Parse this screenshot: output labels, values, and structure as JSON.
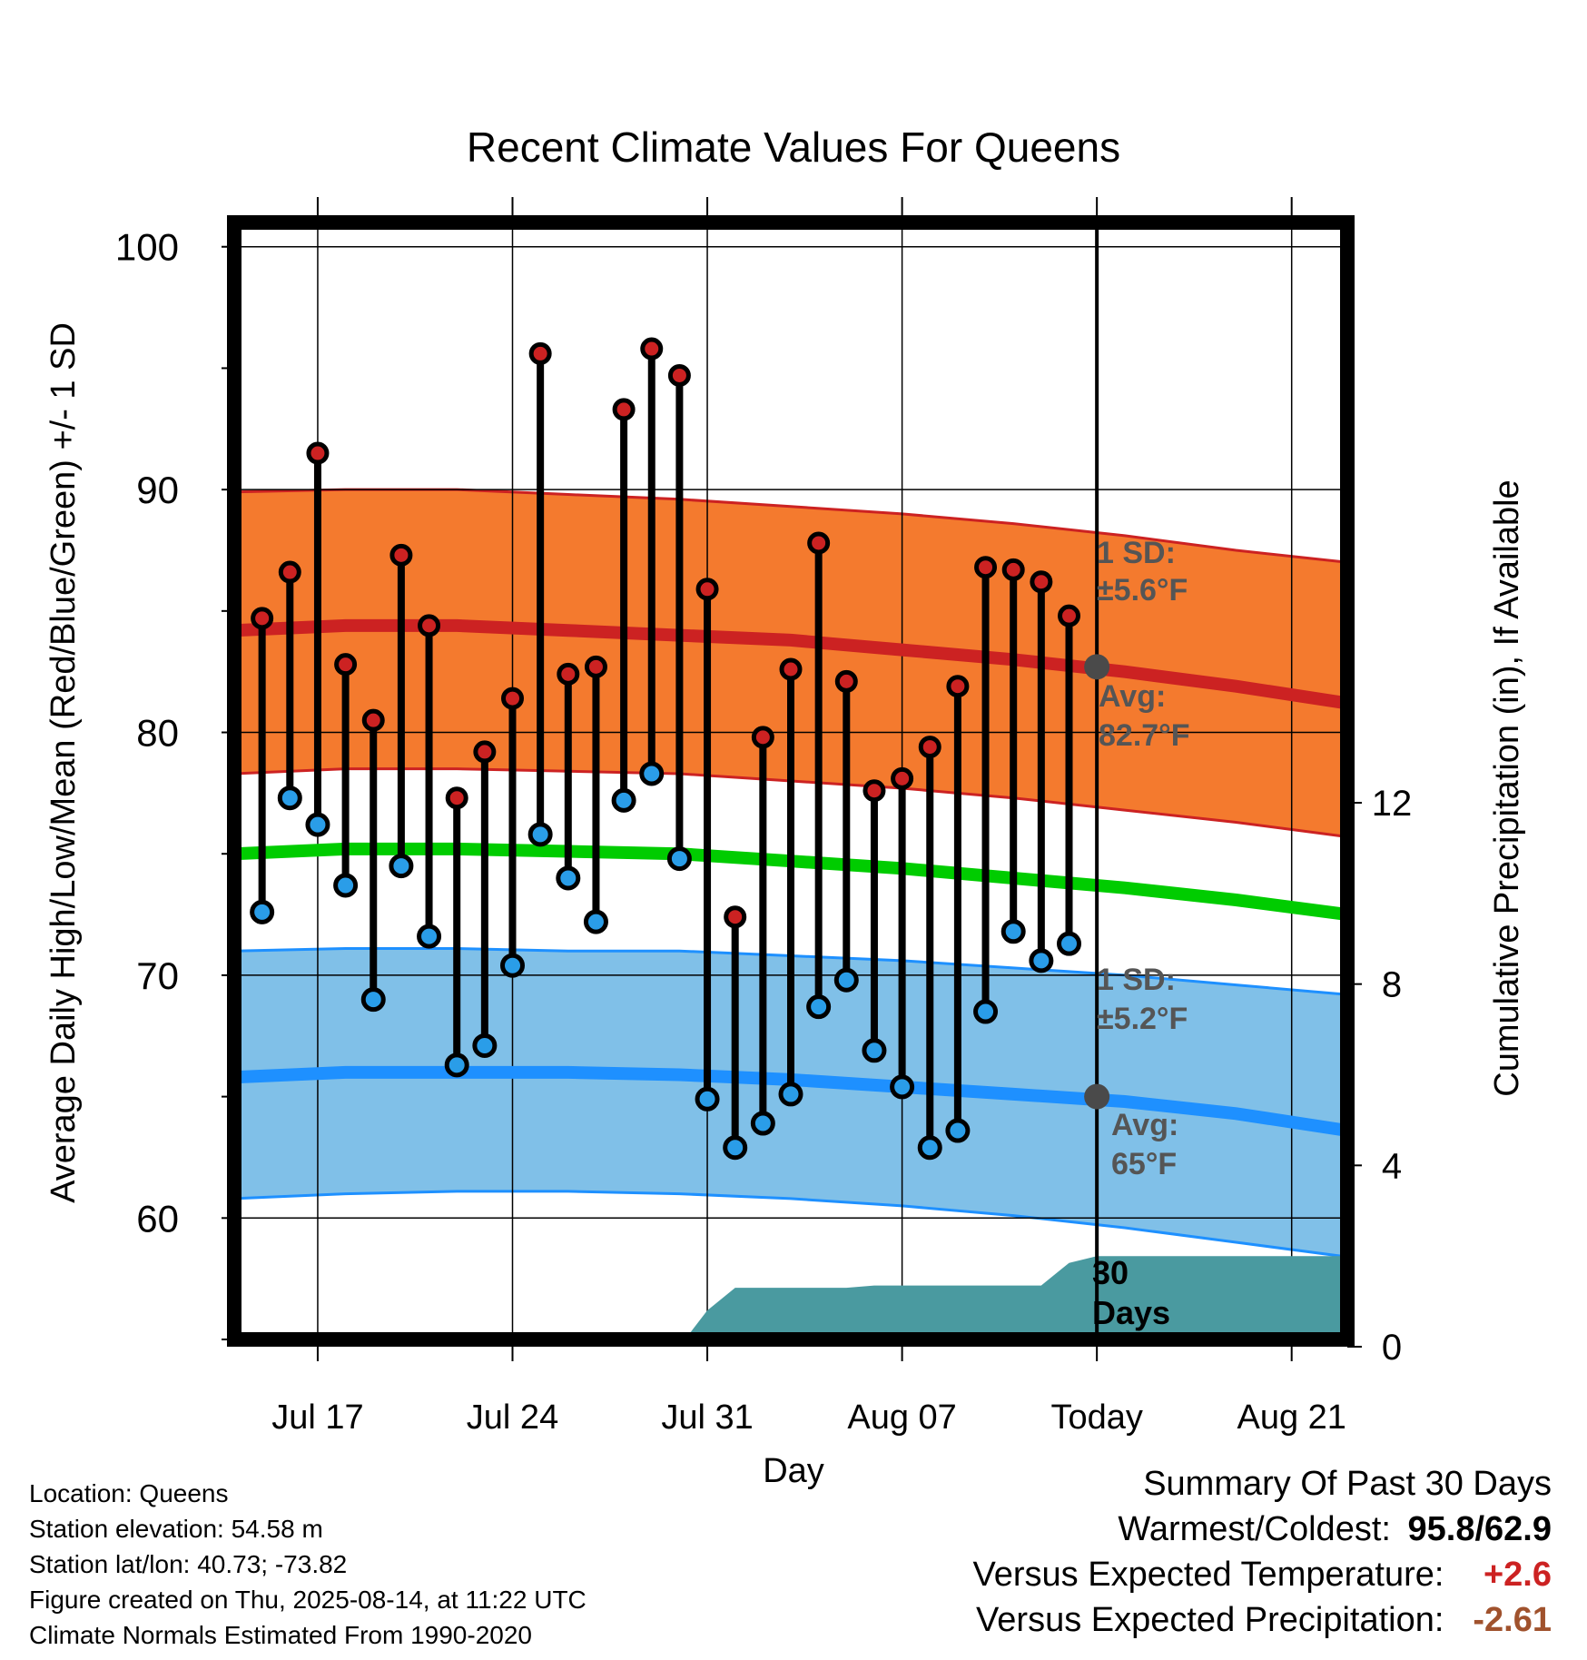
{
  "chart_data": {
    "type": "line",
    "title": "Recent Climate Values For Queens",
    "xlabel": "Day",
    "ylabel": "Average Daily High/Low/Mean (Red/Blue/Green) +/- 1 SD",
    "y2label": "Cumulative Precipitation (in), If Available",
    "ylim": [
      55,
      101
    ],
    "y2lim": [
      0,
      24
    ],
    "yticks": [
      60,
      70,
      80,
      90,
      100
    ],
    "y2ticks": [
      0,
      4,
      8,
      12
    ],
    "xlim": [
      "2025-07-14",
      "2025-08-23"
    ],
    "xticks": [
      {
        "date": "2025-07-17",
        "label": "Jul 17"
      },
      {
        "date": "2025-07-24",
        "label": "Jul 24"
      },
      {
        "date": "2025-07-31",
        "label": "Jul 31"
      },
      {
        "date": "2025-08-07",
        "label": "Aug 07"
      },
      {
        "date": "2025-08-14",
        "label": "Today"
      },
      {
        "date": "2025-08-21",
        "label": "Aug 21"
      }
    ],
    "colors": {
      "high_band": "#f47a2e",
      "high_band_edge": "#cc2222",
      "high_avg": "#cc2222",
      "low_band": "#80c0e8",
      "low_band_edge": "#1e90ff",
      "low_avg": "#1e90ff",
      "mean_avg": "#00cc00",
      "precip": "#4a9aa0",
      "high_dot": "#cc2222",
      "low_dot": "#2a9de8",
      "today_dot": "#4a4a4a",
      "annotation": "#555555"
    },
    "normals": {
      "dates": [
        "2025-07-14",
        "2025-07-18",
        "2025-07-22",
        "2025-07-26",
        "2025-07-30",
        "2025-08-03",
        "2025-08-07",
        "2025-08-11",
        "2025-08-15",
        "2025-08-19",
        "2025-08-23"
      ],
      "high_avg": [
        84.2,
        84.4,
        84.4,
        84.2,
        84.0,
        83.8,
        83.4,
        83.0,
        82.5,
        81.9,
        81.2
      ],
      "high_sd_upper": [
        89.9,
        90.0,
        90.0,
        89.8,
        89.6,
        89.3,
        89.0,
        88.6,
        88.1,
        87.5,
        87.0
      ],
      "high_sd_lower": [
        78.3,
        78.5,
        78.5,
        78.4,
        78.3,
        78.0,
        77.7,
        77.3,
        76.8,
        76.3,
        75.7
      ],
      "mean_avg": [
        75.0,
        75.2,
        75.2,
        75.1,
        75.0,
        74.7,
        74.4,
        74.0,
        73.6,
        73.1,
        72.5
      ],
      "low_avg": [
        65.8,
        66.0,
        66.0,
        66.0,
        65.9,
        65.7,
        65.4,
        65.1,
        64.8,
        64.3,
        63.6
      ],
      "low_sd_upper": [
        71.0,
        71.1,
        71.1,
        71.0,
        71.0,
        70.8,
        70.6,
        70.3,
        70.0,
        69.6,
        69.2
      ],
      "low_sd_lower": [
        60.8,
        61.0,
        61.1,
        61.1,
        61.0,
        60.8,
        60.5,
        60.1,
        59.6,
        59.0,
        58.4
      ]
    },
    "series": [
      {
        "name": "High",
        "dates": [
          "2025-07-15",
          "2025-07-16",
          "2025-07-17",
          "2025-07-18",
          "2025-07-19",
          "2025-07-20",
          "2025-07-21",
          "2025-07-22",
          "2025-07-23",
          "2025-07-24",
          "2025-07-25",
          "2025-07-26",
          "2025-07-27",
          "2025-07-28",
          "2025-07-29",
          "2025-07-30",
          "2025-07-31",
          "2025-08-01",
          "2025-08-02",
          "2025-08-03",
          "2025-08-04",
          "2025-08-05",
          "2025-08-06",
          "2025-08-07",
          "2025-08-08",
          "2025-08-09",
          "2025-08-10",
          "2025-08-11",
          "2025-08-12",
          "2025-08-13"
        ],
        "values": [
          84.7,
          86.6,
          91.5,
          82.8,
          80.5,
          87.3,
          84.4,
          77.3,
          79.2,
          81.4,
          95.6,
          82.4,
          82.7,
          93.3,
          95.8,
          94.7,
          85.9,
          72.4,
          79.8,
          82.6,
          87.8,
          82.1,
          77.6,
          78.1,
          79.4,
          81.9,
          86.8,
          86.7,
          86.2,
          84.8
        ]
      },
      {
        "name": "Low",
        "dates": [
          "2025-07-15",
          "2025-07-16",
          "2025-07-17",
          "2025-07-18",
          "2025-07-19",
          "2025-07-20",
          "2025-07-21",
          "2025-07-22",
          "2025-07-23",
          "2025-07-24",
          "2025-07-25",
          "2025-07-26",
          "2025-07-27",
          "2025-07-28",
          "2025-07-29",
          "2025-07-30",
          "2025-07-31",
          "2025-08-01",
          "2025-08-02",
          "2025-08-03",
          "2025-08-04",
          "2025-08-05",
          "2025-08-06",
          "2025-08-07",
          "2025-08-08",
          "2025-08-09",
          "2025-08-10",
          "2025-08-11",
          "2025-08-12",
          "2025-08-13"
        ],
        "values": [
          72.6,
          77.3,
          76.2,
          73.7,
          69.0,
          74.5,
          71.6,
          66.3,
          67.1,
          70.4,
          75.8,
          74.0,
          72.2,
          77.2,
          78.3,
          74.8,
          64.9,
          62.9,
          63.9,
          65.1,
          68.7,
          69.8,
          66.9,
          65.4,
          62.9,
          63.6,
          68.5,
          71.8,
          70.6,
          71.3
        ]
      }
    ],
    "precip": {
      "dates": [
        "2025-07-30",
        "2025-07-31",
        "2025-08-01",
        "2025-08-05",
        "2025-08-06",
        "2025-08-12",
        "2025-08-13",
        "2025-08-14",
        "2025-08-23"
      ],
      "values": [
        0,
        0.8,
        1.3,
        1.3,
        1.35,
        1.35,
        1.85,
        2.0,
        2.0
      ]
    },
    "today": {
      "date": "2025-08-14",
      "high_avg": 82.7,
      "low_avg": 65.0
    },
    "annotations": {
      "high_sd_label": "1 SD:",
      "high_sd_value": "±5.6°F",
      "high_avg_label": "Avg:",
      "high_avg_value": "82.7°F",
      "low_sd_label": "1 SD:",
      "low_sd_value": "±5.2°F",
      "low_avg_label": "Avg:",
      "low_avg_value": "65°F",
      "days_number": "30",
      "days_word": "Days"
    }
  },
  "footer": {
    "location": "Location: Queens",
    "elevation": "Station elevation: 54.58 m",
    "latlon": "Station lat/lon: 40.73; -73.82",
    "created": "Figure created on Thu, 2025-08-14, at 11:22 UTC",
    "normals": "Climate Normals Estimated From 1990-2020"
  },
  "summary": {
    "title": "Summary Of Past 30 Days",
    "warmest_label": "Warmest/Coldest:",
    "warmest_value": "95.8/62.9",
    "temp_label": "Versus Expected Temperature:",
    "temp_value": "+2.6",
    "precip_label": "Versus Expected Precipitation:",
    "precip_value": "-2.61"
  }
}
